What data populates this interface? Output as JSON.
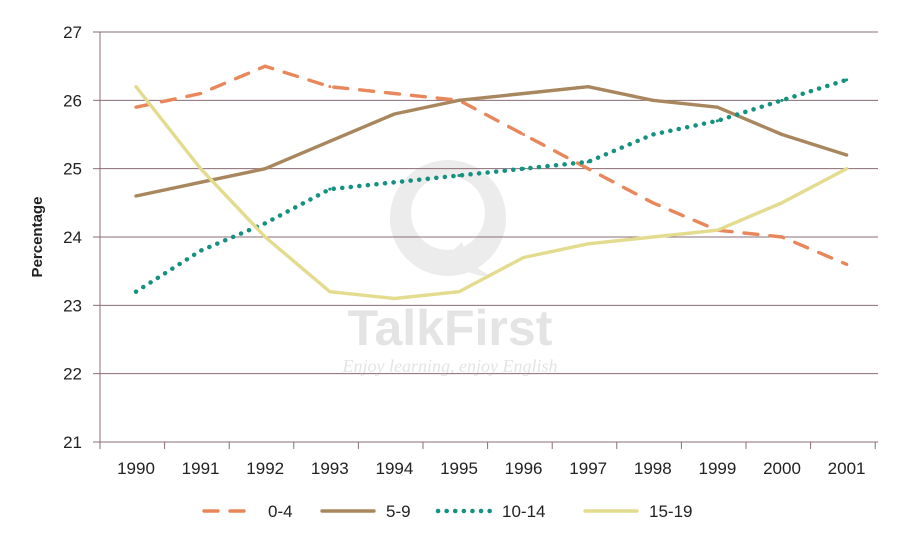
{
  "watermark": {
    "brand": "TalkFirst",
    "tagline": "Enjoy learning, enjoy English"
  },
  "chart_data": {
    "type": "line",
    "title": "",
    "xlabel": "",
    "ylabel": "Percentage",
    "categories": [
      "1990",
      "1991",
      "1992",
      "1993",
      "1994",
      "1995",
      "1996",
      "1997",
      "1998",
      "1999",
      "2000",
      "2001"
    ],
    "ylim": [
      21,
      27
    ],
    "yticks": [
      "21",
      "22",
      "23",
      "24",
      "25",
      "26",
      "27"
    ],
    "grid": "horizontal",
    "legend_position": "bottom",
    "series": [
      {
        "name": "0-4",
        "style": "dashed",
        "color": "#e8875c",
        "values": [
          25.9,
          26.1,
          26.5,
          26.2,
          26.1,
          26.0,
          25.5,
          25.0,
          24.5,
          24.1,
          24.0,
          23.6
        ]
      },
      {
        "name": "5-9",
        "style": "solid",
        "color": "#a8875f",
        "values": [
          24.6,
          24.8,
          25.0,
          25.4,
          25.8,
          26.0,
          26.1,
          26.2,
          26.0,
          25.9,
          25.5,
          25.2
        ]
      },
      {
        "name": "10-14",
        "style": "dotted",
        "color": "#15917f",
        "values": [
          23.2,
          23.8,
          24.2,
          24.7,
          24.8,
          24.9,
          25.0,
          25.1,
          25.5,
          25.7,
          26.0,
          26.3
        ]
      },
      {
        "name": "15-19",
        "style": "solid",
        "color": "#e3dc8f",
        "values": [
          26.2,
          25.0,
          24.0,
          23.2,
          23.1,
          23.2,
          23.7,
          23.9,
          24.0,
          24.1,
          24.5,
          25.0
        ]
      }
    ]
  }
}
